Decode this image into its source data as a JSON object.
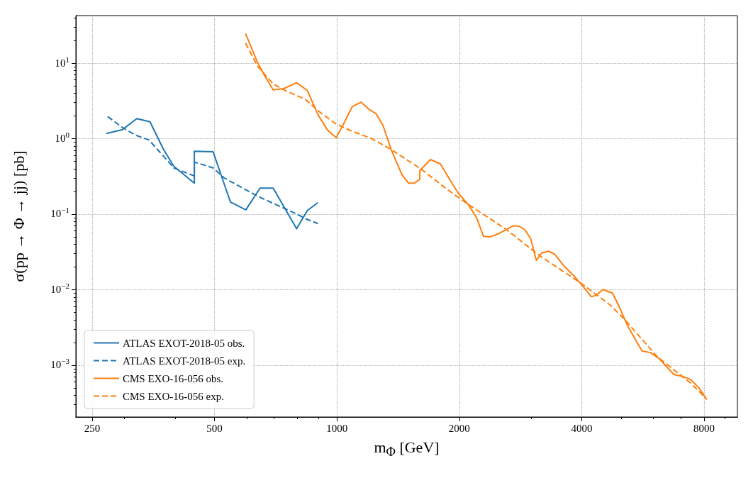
{
  "chart_data": {
    "type": "line",
    "xlabel": "m$_{Φ}$ [GeV]",
    "ylabel": "σ(pp → Φ → jj) [pb]",
    "log": "xy",
    "grid": true,
    "legend": "bottom left",
    "xlim": [
      228,
      9660
    ],
    "ylim": [
      0.000206,
      42.6
    ],
    "xticks": [
      250,
      {
        "value": 300,
        "label": null
      },
      {
        "value": 400,
        "label": null
      },
      500,
      {
        "value": 600,
        "label": null
      },
      {
        "value": 700,
        "label": null
      },
      {
        "value": 800,
        "label": null
      },
      {
        "value": 900,
        "label": null
      },
      1000,
      2000,
      {
        "value": 3000,
        "label": null
      },
      4000,
      {
        "value": 5000,
        "label": null
      },
      {
        "value": 6000,
        "label": null
      },
      {
        "value": 7000,
        "label": null
      },
      8000,
      {
        "value": 9000,
        "label": null
      }
    ],
    "yticks": [
      {
        "value": 0.0003,
        "label": null
      },
      {
        "value": 0.0004,
        "label": null
      },
      {
        "value": 0.0005,
        "label": null
      },
      {
        "value": 0.0006,
        "label": null
      },
      {
        "value": 0.0007,
        "label": null
      },
      {
        "value": 0.0008,
        "label": null
      },
      {
        "value": 0.0009,
        "label": null
      },
      {
        "value": 0.001,
        "label": "10$^{−3}$"
      },
      {
        "value": 0.002,
        "label": null
      },
      {
        "value": 0.003,
        "label": null
      },
      {
        "value": 0.004,
        "label": null
      },
      {
        "value": 0.005,
        "label": null
      },
      {
        "value": 0.006,
        "label": null
      },
      {
        "value": 0.007,
        "label": null
      },
      {
        "value": 0.008,
        "label": null
      },
      {
        "value": 0.009,
        "label": null
      },
      {
        "value": 0.01,
        "label": "10$^{−2}$"
      },
      {
        "value": 0.02,
        "label": null
      },
      {
        "value": 0.03,
        "label": null
      },
      {
        "value": 0.04,
        "label": null
      },
      {
        "value": 0.05,
        "label": null
      },
      {
        "value": 0.06,
        "label": null
      },
      {
        "value": 0.07,
        "label": null
      },
      {
        "value": 0.08,
        "label": null
      },
      {
        "value": 0.09,
        "label": null
      },
      {
        "value": 0.1,
        "label": "10$^{−1}$"
      },
      {
        "value": 0.2,
        "label": null
      },
      {
        "value": 0.3,
        "label": null
      },
      {
        "value": 0.4,
        "label": null
      },
      {
        "value": 0.5,
        "label": null
      },
      {
        "value": 0.6,
        "label": null
      },
      {
        "value": 0.7,
        "label": null
      },
      {
        "value": 0.8,
        "label": null
      },
      {
        "value": 0.9,
        "label": null
      },
      {
        "value": 1,
        "label": "10$^{0}$"
      },
      {
        "value": 2,
        "label": null
      },
      {
        "value": 3,
        "label": null
      },
      {
        "value": 4,
        "label": null
      },
      {
        "value": 5,
        "label": null
      },
      {
        "value": 6,
        "label": null
      },
      {
        "value": 7,
        "label": null
      },
      {
        "value": 8,
        "label": null
      },
      {
        "value": 9,
        "label": null
      },
      {
        "value": 10,
        "label": "10$^{1}$"
      },
      {
        "value": 20,
        "label": null
      },
      {
        "value": 30,
        "label": null
      },
      {
        "value": 40,
        "label": null
      }
    ],
    "series": [
      {
        "name": "ATLAS EXOT-2018-05 obs.",
        "color": "#1f77b4",
        "line_style": "solid",
        "x": [
          271,
          297,
          322,
          347,
          374,
          397,
          446,
          446,
          496,
          547,
          597,
          647,
          697,
          796,
          846,
          898
        ],
        "values": [
          1.17,
          1.32,
          1.84,
          1.67,
          0.73,
          0.43,
          0.257,
          0.68,
          0.67,
          0.145,
          0.114,
          0.221,
          0.221,
          0.064,
          0.112,
          0.142
        ]
      },
      {
        "name": "ATLAS EXOT-2018-05 exp.",
        "color": "#1f77b4",
        "line_style": "dashed",
        "x": [
          273,
          297,
          320,
          345,
          374,
          397,
          446,
          446,
          496,
          529,
          638,
          791,
          846,
          898
        ],
        "values": [
          1.96,
          1.4,
          1.11,
          0.96,
          0.59,
          0.41,
          0.32,
          0.49,
          0.41,
          0.3,
          0.173,
          0.102,
          0.085,
          0.075
        ]
      },
      {
        "name": "CMS EXO-16-056 obs.",
        "color": "#ff7f0e",
        "line_style": "solid",
        "x": [
          596,
          638,
          664,
          697,
          740,
          796,
          846,
          898,
          948,
          996,
          1034,
          1091,
          1146,
          1198,
          1247,
          1298,
          1361,
          1446,
          1501,
          1550,
          1599,
          1599,
          1698,
          1796,
          1903,
          1993,
          2102,
          2204,
          2294,
          2388,
          2502,
          2712,
          2805,
          2900,
          2998,
          3093,
          3185,
          3315,
          3430,
          3618,
          3816,
          4000,
          4220,
          4335,
          4513,
          4760,
          4922,
          5193,
          5630,
          5901,
          6225,
          6745,
          7067,
          7406,
          7763,
          8081
        ],
        "values": [
          24.6,
          10.2,
          6.82,
          4.43,
          4.59,
          5.5,
          4.33,
          2.08,
          1.3,
          1.03,
          1.5,
          2.67,
          3.04,
          2.45,
          2.15,
          1.5,
          0.705,
          0.331,
          0.257,
          0.257,
          0.29,
          0.376,
          0.528,
          0.464,
          0.276,
          0.186,
          0.135,
          0.0903,
          0.0508,
          0.0501,
          0.0554,
          0.0703,
          0.0692,
          0.0621,
          0.0472,
          0.0244,
          0.0306,
          0.0323,
          0.0296,
          0.0206,
          0.0155,
          0.0116,
          0.0081,
          0.00838,
          0.01005,
          0.00902,
          0.00628,
          0.00328,
          0.00154,
          0.00147,
          0.0012,
          0.00075,
          0.000713,
          0.000649,
          0.000504,
          0.000364
        ]
      },
      {
        "name": "CMS EXO-16-056 exp.",
        "color": "#ff7f0e",
        "line_style": "dashed",
        "x": [
          596,
          638,
          697,
          740,
          835,
          917,
          996,
          1091,
          1214,
          1352,
          1609,
          1864,
          2102,
          2605,
          3143,
          4000,
          4698,
          5091,
          6142,
          7406,
          8135
        ],
        "values": [
          18.4,
          9.12,
          5.31,
          4.43,
          3.32,
          2.15,
          1.56,
          1.25,
          1.01,
          0.731,
          0.397,
          0.214,
          0.135,
          0.0631,
          0.0285,
          0.012,
          0.00628,
          0.00408,
          0.00129,
          0.000582,
          0.000352
        ]
      }
    ]
  }
}
